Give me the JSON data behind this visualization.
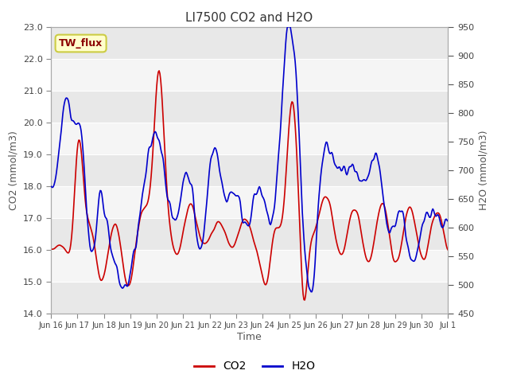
{
  "title": "LI7500 CO2 and H2O",
  "xlabel": "Time",
  "ylabel_left": "CO2 (mmol/m3)",
  "ylabel_right": "H2O (mmol/m3)",
  "co2_ylim": [
    14.0,
    23.0
  ],
  "h2o_ylim": [
    450,
    950
  ],
  "co2_yticks": [
    14.0,
    15.0,
    16.0,
    17.0,
    18.0,
    19.0,
    20.0,
    21.0,
    22.0,
    23.0
  ],
  "h2o_yticks": [
    450,
    500,
    550,
    600,
    650,
    700,
    750,
    800,
    850,
    900,
    950
  ],
  "co2_color": "#cc0000",
  "h2o_color": "#0000cc",
  "co2_label": "CO2",
  "h2o_label": "H2O",
  "annotation_text": "TW_flux",
  "annotation_bg": "#ffffcc",
  "annotation_border": "#cccc44",
  "bg_color": "#ffffff",
  "band_colors": [
    "#e8e8e8",
    "#f5f5f5"
  ],
  "grid_color": "#ffffff",
  "title_color": "#333333",
  "axis_label_color": "#555555",
  "tick_label_color": "#444444",
  "x_tick_labels": [
    "Jun 16",
    "Jun 17",
    "Jun 18",
    "Jun 19",
    "Jun 20",
    "Jun 21",
    "Jun 22",
    "Jun 23",
    "Jun 24",
    "Jun 25",
    "Jun 26",
    "Jun 27",
    "Jun 28",
    "Jun 29",
    "Jun 30",
    "Jul 1"
  ],
  "n_points": 500
}
